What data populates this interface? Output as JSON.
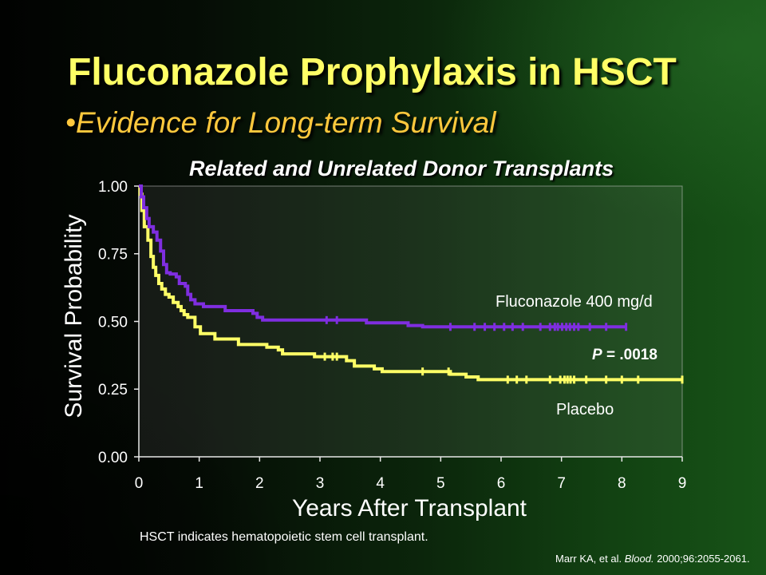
{
  "slide": {
    "title": "Fluconazole Prophylaxis in HSCT",
    "subtitle": "•Evidence for Long-term Survival",
    "footnote": "HSCT indicates hematopoietic stem cell transplant.",
    "citation": {
      "authors": "Marr KA, et al.",
      "journal": "Blood.",
      "details": "2000;96:2055-2061."
    }
  },
  "colors": {
    "title": "#ffff66",
    "subtitle": "#ffc83d",
    "text": "#ffffff"
  },
  "chart_data": {
    "type": "line",
    "step": true,
    "title": "Related and Unrelated Donor Transplants",
    "xlabel": "Years After Transplant",
    "ylabel": "Survival Probability",
    "xlim": [
      0,
      9
    ],
    "ylim": [
      0,
      1
    ],
    "grid": false,
    "xticks": [
      0,
      1,
      2,
      3,
      4,
      5,
      6,
      7,
      8,
      9
    ],
    "xtick_labels": [
      "0",
      "1",
      "2",
      "3",
      "4",
      "5",
      "6",
      "7",
      "8",
      "9"
    ],
    "yticks": [
      0,
      0.25,
      0.5,
      0.75,
      1
    ],
    "ytick_labels": [
      "0.00",
      "0.25",
      "0.50",
      "0.75",
      "1.00"
    ],
    "series": [
      {
        "name": "Fluconazole 400 mg/d",
        "color": "#7f2ee0",
        "x": [
          0,
          0.04,
          0.08,
          0.13,
          0.17,
          0.24,
          0.3,
          0.36,
          0.41,
          0.46,
          0.52,
          0.62,
          0.67,
          0.77,
          0.81,
          0.86,
          0.93,
          1.07,
          1.43,
          1.89,
          1.96,
          2.05,
          3.77,
          4.46,
          4.7
        ],
        "y": [
          1.0,
          0.96,
          0.92,
          0.88,
          0.85,
          0.83,
          0.8,
          0.76,
          0.71,
          0.68,
          0.675,
          0.665,
          0.64,
          0.63,
          0.6,
          0.58,
          0.565,
          0.555,
          0.54,
          0.53,
          0.515,
          0.505,
          0.495,
          0.485,
          0.48
        ],
        "x_end": 8.07,
        "censored_x": [
          3.11,
          3.28,
          5.16,
          5.56,
          5.73,
          5.89,
          6.05,
          6.19,
          6.36,
          6.65,
          6.81,
          6.89,
          6.94,
          7.01,
          7.08,
          7.14,
          7.21,
          7.28,
          7.47,
          7.74,
          8.07
        ]
      },
      {
        "name": "Placebo",
        "color": "#ffff66",
        "x": [
          0,
          0.02,
          0.05,
          0.09,
          0.15,
          0.2,
          0.24,
          0.28,
          0.33,
          0.38,
          0.44,
          0.5,
          0.57,
          0.65,
          0.7,
          0.75,
          0.81,
          0.93,
          1.02,
          1.26,
          1.65,
          2.12,
          2.31,
          2.38,
          2.91,
          3.44,
          3.57,
          3.9,
          4.03,
          5.16,
          5.42,
          5.62
        ],
        "y": [
          1.0,
          0.97,
          0.91,
          0.85,
          0.8,
          0.74,
          0.7,
          0.67,
          0.64,
          0.62,
          0.6,
          0.59,
          0.57,
          0.555,
          0.54,
          0.525,
          0.515,
          0.48,
          0.455,
          0.435,
          0.415,
          0.405,
          0.395,
          0.38,
          0.37,
          0.355,
          0.335,
          0.325,
          0.315,
          0.305,
          0.295,
          0.285
        ],
        "x_end": 9.0,
        "censored_x": [
          3.08,
          3.21,
          3.28,
          4.7,
          5.13,
          6.11,
          6.26,
          6.42,
          6.81,
          6.98,
          7.05,
          7.1,
          7.15,
          7.21,
          7.41,
          7.74,
          8.0,
          8.27,
          9.0
        ]
      }
    ],
    "annotation": {
      "symbol": "P",
      "text": "= .0018"
    }
  }
}
